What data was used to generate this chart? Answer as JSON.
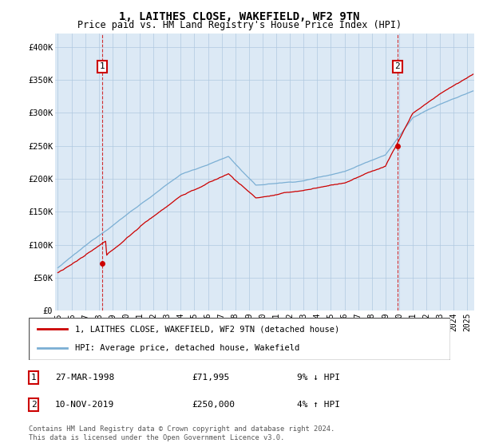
{
  "title": "1, LAITHES CLOSE, WAKEFIELD, WF2 9TN",
  "subtitle": "Price paid vs. HM Land Registry's House Price Index (HPI)",
  "legend_line1": "1, LAITHES CLOSE, WAKEFIELD, WF2 9TN (detached house)",
  "legend_line2": "HPI: Average price, detached house, Wakefield",
  "sale1_label": "1",
  "sale1_date": "27-MAR-1998",
  "sale1_price": "£71,995",
  "sale1_hpi": "9% ↓ HPI",
  "sale1_x": 1998.23,
  "sale1_y": 71995,
  "sale2_label": "2",
  "sale2_date": "10-NOV-2019",
  "sale2_price": "£250,000",
  "sale2_hpi": "4% ↑ HPI",
  "sale2_x": 2019.87,
  "sale2_y": 250000,
  "footer": "Contains HM Land Registry data © Crown copyright and database right 2024.\nThis data is licensed under the Open Government Licence v3.0.",
  "ylim": [
    0,
    420000
  ],
  "yticks": [
    0,
    50000,
    100000,
    150000,
    200000,
    250000,
    300000,
    350000,
    400000
  ],
  "ytick_labels": [
    "£0",
    "£50K",
    "£100K",
    "£150K",
    "£200K",
    "£250K",
    "£300K",
    "£350K",
    "£400K"
  ],
  "xlim_start": 1994.8,
  "xlim_end": 2025.5,
  "hpi_color": "#7bafd4",
  "sale_color": "#cc0000",
  "bg_color": "#ffffff",
  "chart_bg_color": "#dce9f5",
  "grid_color": "#b0c8e0",
  "annotation_color": "#cc0000",
  "dashed_color": "#cc0000",
  "title_fontsize": 10,
  "subtitle_fontsize": 8.5
}
